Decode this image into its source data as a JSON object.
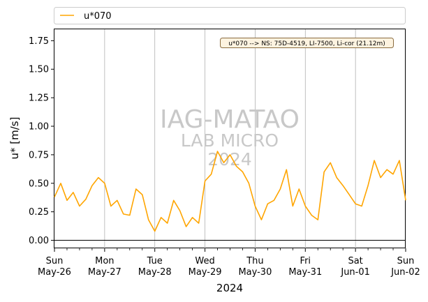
{
  "chart_data": {
    "type": "line",
    "title": "",
    "xlabel": "2024",
    "ylabel": "u* [m/s]",
    "ylim": [
      -0.07,
      1.85
    ],
    "yticks": [
      0.0,
      0.25,
      0.5,
      0.75,
      1.0,
      1.25,
      1.5,
      1.75
    ],
    "ytick_labels": [
      "0.00",
      "0.25",
      "0.50",
      "0.75",
      "1.00",
      "1.25",
      "1.50",
      "1.75"
    ],
    "xlim": [
      "2024-05-26",
      "2024-06-02"
    ],
    "xticks": [
      {
        "day": "Sun",
        "date": "May-26"
      },
      {
        "day": "Mon",
        "date": "May-27"
      },
      {
        "day": "Tue",
        "date": "May-28"
      },
      {
        "day": "Wed",
        "date": "May-29"
      },
      {
        "day": "Thu",
        "date": "May-30"
      },
      {
        "day": "Fri",
        "date": "May-31"
      },
      {
        "day": "Sat",
        "date": "Jun-01"
      },
      {
        "day": "Sun",
        "date": "Jun-02"
      }
    ],
    "grid": "vertical",
    "legend": "top",
    "annotation": "u*070 --> NS: 75D-4519, LI-7500, Li-cor (21.12m)",
    "watermark": [
      "IAG-MATAO",
      "LAB MICRO",
      "2024"
    ],
    "series": [
      {
        "name": "u*070",
        "color": "#ffa500",
        "x": [
          "2024-05-26 00:00",
          "2024-05-26 03:00",
          "2024-05-26 06:00",
          "2024-05-26 09:00",
          "2024-05-26 12:00",
          "2024-05-26 15:00",
          "2024-05-26 18:00",
          "2024-05-26 21:00",
          "2024-05-27 00:00",
          "2024-05-27 03:00",
          "2024-05-27 06:00",
          "2024-05-27 09:00",
          "2024-05-27 12:00",
          "2024-05-27 15:00",
          "2024-05-27 18:00",
          "2024-05-27 21:00",
          "2024-05-28 00:00",
          "2024-05-28 03:00",
          "2024-05-28 06:00",
          "2024-05-28 09:00",
          "2024-05-28 12:00",
          "2024-05-28 15:00",
          "2024-05-28 18:00",
          "2024-05-28 21:00",
          "2024-05-29 00:00",
          "2024-05-29 03:00",
          "2024-05-29 06:00",
          "2024-05-29 09:00",
          "2024-05-29 12:00",
          "2024-05-29 15:00",
          "2024-05-29 18:00",
          "2024-05-29 21:00",
          "2024-05-30 00:00",
          "2024-05-30 03:00",
          "2024-05-30 06:00",
          "2024-05-30 09:00",
          "2024-05-30 12:00",
          "2024-05-30 15:00",
          "2024-05-30 18:00",
          "2024-05-30 21:00",
          "2024-05-31 00:00",
          "2024-05-31 03:00",
          "2024-05-31 06:00",
          "2024-05-31 09:00",
          "2024-05-31 12:00",
          "2024-05-31 15:00",
          "2024-05-31 18:00",
          "2024-05-31 21:00",
          "2024-06-01 00:00",
          "2024-06-01 03:00",
          "2024-06-01 06:00",
          "2024-06-01 09:00",
          "2024-06-01 12:00",
          "2024-06-01 15:00",
          "2024-06-01 18:00",
          "2024-06-01 21:00",
          "2024-06-02 00:00"
        ],
        "y": [
          0.38,
          0.5,
          0.35,
          0.42,
          0.3,
          0.36,
          0.48,
          0.55,
          0.5,
          0.3,
          0.35,
          0.23,
          0.22,
          0.45,
          0.4,
          0.18,
          0.08,
          0.2,
          0.15,
          0.35,
          0.26,
          0.12,
          0.2,
          0.15,
          0.52,
          0.58,
          0.78,
          0.68,
          0.75,
          0.65,
          0.6,
          0.5,
          0.3,
          0.18,
          0.32,
          0.35,
          0.45,
          0.62,
          0.3,
          0.45,
          0.3,
          0.22,
          0.18,
          0.6,
          0.68,
          0.55,
          0.48,
          0.4,
          0.32,
          0.3,
          0.48,
          0.7,
          0.55,
          0.62,
          0.58,
          0.7,
          0.35
        ]
      }
    ]
  }
}
